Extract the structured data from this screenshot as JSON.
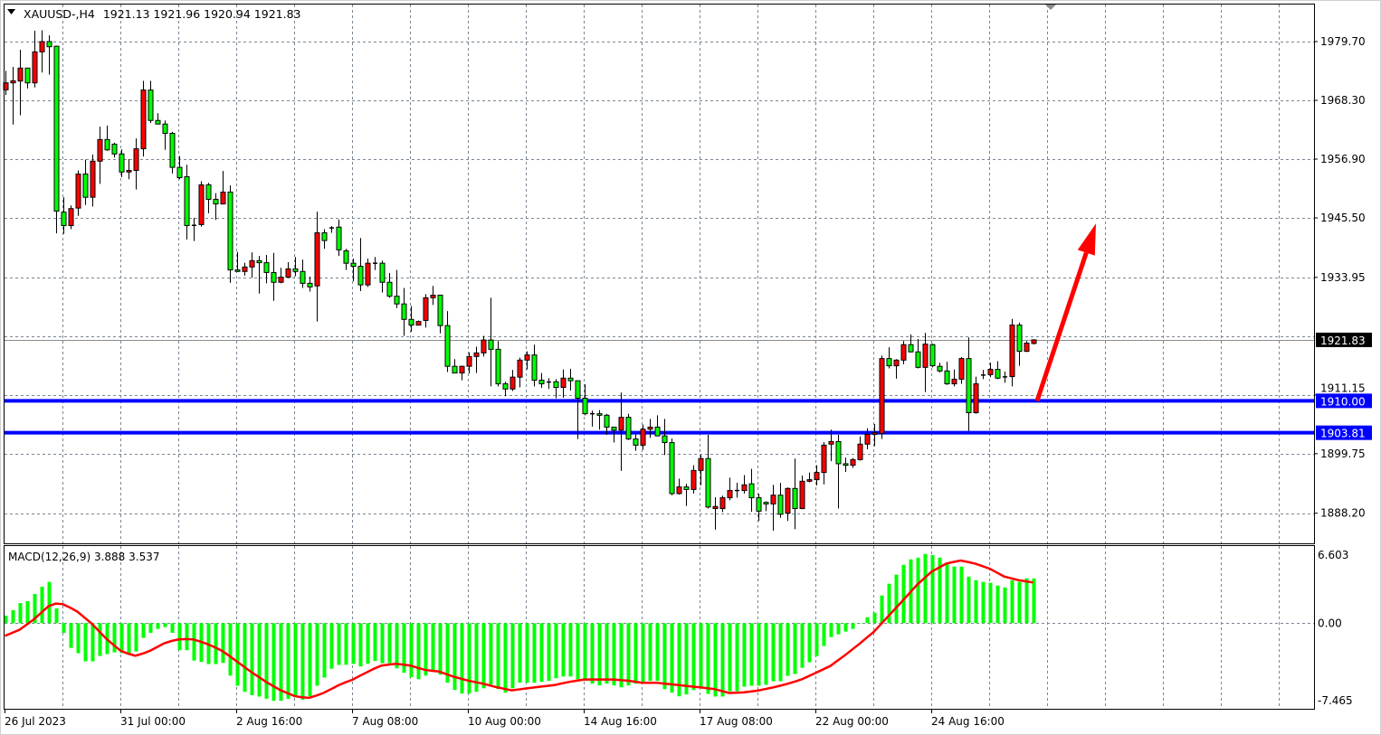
{
  "header": {
    "symbol": "XAUUSD-,H4",
    "ohlc": "1921.13 1921.96 1920.94 1921.83",
    "menu_icon": "triangle-down-icon"
  },
  "colors": {
    "bull": "#ff0000",
    "bear": "#00ff00",
    "outline": "#000000",
    "grid": "#7a8694",
    "level_line": "#0000ff",
    "macd_histogram": "#00ff00",
    "macd_signal": "#ff0000",
    "arrow": "#ff0000",
    "price_line": "#8c8c8c"
  },
  "chart_data": [
    {
      "type": "candlestick",
      "symbol": "XAUUSD-",
      "timeframe": "H4",
      "y_range": [
        1882.35,
        1987.07
      ],
      "grid": true,
      "price_ticks": [
        {
          "value": 1979.7,
          "label": "1979.70"
        },
        {
          "value": 1968.3,
          "label": "1968.30"
        },
        {
          "value": 1956.9,
          "label": "1956.90"
        },
        {
          "value": 1945.5,
          "label": "1945.50"
        },
        {
          "value": 1933.95,
          "label": "1933.95"
        },
        {
          "value": 1922.55,
          "label": ""
        },
        {
          "value": 1911.15,
          "label": "1911.15"
        },
        {
          "value": 1899.75,
          "label": "1899.75"
        },
        {
          "value": 1888.2,
          "label": "1888.20"
        }
      ],
      "current_price": {
        "value": 1921.83,
        "label": "1921.83"
      },
      "levels": [
        {
          "value": 1910.0,
          "label": "1910.00"
        },
        {
          "value": 1903.81,
          "label": "1903.81"
        }
      ],
      "arrow": {
        "from_price": 1910.0,
        "to_price": 1944.4,
        "direction": "up"
      },
      "time_labels": [
        "26 Jul 2023",
        "31 Jul 00:00",
        "2 Aug 16:00",
        "7 Aug 08:00",
        "10 Aug 00:00",
        "14 Aug 16:00",
        "17 Aug 08:00",
        "22 Aug 00:00",
        "24 Aug 16:00"
      ],
      "ohlc_order": [
        "open",
        "high",
        "low",
        "close"
      ],
      "candles": [
        [
          1970.35,
          1974.03,
          1969.35,
          1971.69
        ],
        [
          1971.69,
          1974.79,
          1963.6,
          1972.1
        ],
        [
          1972.04,
          1978.1,
          1965.4,
          1974.56
        ],
        [
          1974.56,
          1974.56,
          1970.6,
          1971.69
        ],
        [
          1971.69,
          1981.8,
          1970.8,
          1977.71
        ],
        [
          1977.71,
          1981.9,
          1973.7,
          1979.7
        ],
        [
          1979.7,
          1980.9,
          1973.3,
          1978.7
        ],
        [
          1978.8,
          1978.9,
          1942.5,
          1946.8
        ],
        [
          1946.6,
          1949.5,
          1942.4,
          1944.0
        ],
        [
          1944.0,
          1947.9,
          1943.3,
          1947.3
        ],
        [
          1947.4,
          1954.7,
          1945.9,
          1954.0
        ],
        [
          1954.0,
          1956.8,
          1948.0,
          1949.5
        ],
        [
          1949.5,
          1957.8,
          1947.7,
          1956.5
        ],
        [
          1956.5,
          1963.2,
          1952.1,
          1960.7
        ],
        [
          1960.7,
          1963.4,
          1958.5,
          1958.7
        ],
        [
          1959.8,
          1960.1,
          1957.2,
          1957.9
        ],
        [
          1957.9,
          1958.8,
          1953.4,
          1954.4
        ],
        [
          1954.4,
          1956.9,
          1953.0,
          1954.7
        ],
        [
          1954.7,
          1960.9,
          1951.0,
          1958.9
        ],
        [
          1958.9,
          1972.1,
          1957.4,
          1970.3
        ],
        [
          1970.3,
          1972.1,
          1963.9,
          1964.4
        ],
        [
          1964.4,
          1965.8,
          1963.7,
          1963.7
        ],
        [
          1963.7,
          1964.4,
          1958.7,
          1961.9
        ],
        [
          1961.9,
          1962.2,
          1954.1,
          1955.3
        ],
        [
          1955.3,
          1957.5,
          1953.0,
          1953.3
        ],
        [
          1953.5,
          1955.8,
          1941.3,
          1944.0
        ],
        [
          1944.1,
          1945.5,
          1941.0,
          1944.0
        ],
        [
          1944.2,
          1952.6,
          1943.8,
          1951.9
        ],
        [
          1951.9,
          1952.3,
          1946.4,
          1949.1
        ],
        [
          1949.1,
          1950.3,
          1945.1,
          1948.2
        ],
        [
          1948.2,
          1954.6,
          1948.1,
          1950.5
        ],
        [
          1950.5,
          1951.8,
          1932.9,
          1935.4
        ],
        [
          1935.4,
          1938.9,
          1935.0,
          1935.1
        ],
        [
          1935.1,
          1936.8,
          1934.3,
          1935.97
        ],
        [
          1935.97,
          1938.8,
          1933.9,
          1937.2
        ],
        [
          1937.2,
          1938.1,
          1930.8,
          1936.8
        ],
        [
          1936.8,
          1938.3,
          1932.8,
          1934.9
        ],
        [
          1934.9,
          1938.7,
          1929.4,
          1933.0
        ],
        [
          1933.0,
          1935.8,
          1932.8,
          1934.0
        ],
        [
          1934.0,
          1936.9,
          1933.9,
          1935.6
        ],
        [
          1935.6,
          1937.9,
          1934.2,
          1935.1
        ],
        [
          1935.1,
          1937.4,
          1931.9,
          1932.8
        ],
        [
          1932.8,
          1934.1,
          1931.2,
          1932.1
        ],
        [
          1932.3,
          1946.7,
          1925.4,
          1942.6
        ],
        [
          1942.6,
          1943.3,
          1939.5,
          1941.1
        ],
        [
          1943.6,
          1943.9,
          1942.6,
          1943.5
        ],
        [
          1943.7,
          1945.2,
          1938.1,
          1939.3
        ],
        [
          1939.1,
          1939.5,
          1935.4,
          1936.7
        ],
        [
          1936.7,
          1937.6,
          1933.2,
          1936.1
        ],
        [
          1936.1,
          1941.6,
          1931.3,
          1932.5
        ],
        [
          1932.5,
          1937.6,
          1932.1,
          1936.7
        ],
        [
          1936.7,
          1937.9,
          1935.4,
          1936.7
        ],
        [
          1936.7,
          1937.2,
          1931.0,
          1933.0
        ],
        [
          1933.0,
          1934.8,
          1930.0,
          1930.3
        ],
        [
          1930.3,
          1935.4,
          1928.0,
          1928.8
        ],
        [
          1928.8,
          1931.9,
          1922.6,
          1925.8
        ],
        [
          1925.8,
          1928.4,
          1923.4,
          1924.7
        ],
        [
          1924.7,
          1925.6,
          1924.6,
          1925.4
        ],
        [
          1925.6,
          1930.7,
          1924.2,
          1930.0
        ],
        [
          1930.0,
          1932.3,
          1928.6,
          1930.5
        ],
        [
          1930.5,
          1930.5,
          1923.1,
          1924.6
        ],
        [
          1924.6,
          1927.4,
          1915.6,
          1916.7
        ],
        [
          1916.7,
          1918.1,
          1915.4,
          1915.4
        ],
        [
          1915.4,
          1916.8,
          1914.0,
          1916.7
        ],
        [
          1916.7,
          1919.4,
          1915.3,
          1918.6
        ],
        [
          1918.6,
          1920.5,
          1915.4,
          1919.3
        ],
        [
          1919.3,
          1922.6,
          1918.6,
          1921.8
        ],
        [
          1921.8,
          1930.0,
          1912.8,
          1920.0
        ],
        [
          1920.0,
          1921.6,
          1912.8,
          1913.3
        ],
        [
          1913.3,
          1913.7,
          1910.9,
          1912.3
        ],
        [
          1912.3,
          1916.0,
          1911.9,
          1914.6
        ],
        [
          1914.6,
          1918.4,
          1912.6,
          1917.9
        ],
        [
          1917.9,
          1919.6,
          1916.1,
          1918.9
        ],
        [
          1918.9,
          1920.9,
          1912.8,
          1914.0
        ],
        [
          1914.0,
          1915.4,
          1912.5,
          1913.3
        ],
        [
          1913.7,
          1914.4,
          1912.3,
          1913.6
        ],
        [
          1913.7,
          1914.2,
          1910.5,
          1912.6
        ],
        [
          1912.6,
          1916.1,
          1910.6,
          1914.4
        ],
        [
          1914.4,
          1916.2,
          1912.0,
          1913.9
        ],
        [
          1913.9,
          1913.9,
          1902.6,
          1910.5
        ],
        [
          1910.5,
          1913.2,
          1907.2,
          1907.5
        ],
        [
          1907.5,
          1908.1,
          1905.0,
          1907.5
        ],
        [
          1907.5,
          1908.2,
          1904.4,
          1907.2
        ],
        [
          1907.2,
          1907.5,
          1903.4,
          1904.9
        ],
        [
          1904.9,
          1904.9,
          1901.9,
          1904.3
        ],
        [
          1904.3,
          1911.6,
          1896.4,
          1906.8
        ],
        [
          1906.8,
          1907.5,
          1902.4,
          1902.6
        ],
        [
          1902.6,
          1903.5,
          1900.3,
          1901.4
        ],
        [
          1901.4,
          1905.4,
          1900.5,
          1904.5
        ],
        [
          1904.5,
          1906.5,
          1902.8,
          1904.9
        ],
        [
          1904.9,
          1907.2,
          1903.2,
          1903.2
        ],
        [
          1903.2,
          1906.5,
          1899.5,
          1901.9
        ],
        [
          1901.9,
          1902.7,
          1891.7,
          1892.0
        ],
        [
          1892.0,
          1894.9,
          1891.8,
          1893.3
        ],
        [
          1893.3,
          1893.9,
          1889.6,
          1892.8
        ],
        [
          1892.8,
          1897.5,
          1892.0,
          1896.5
        ],
        [
          1896.5,
          1899.5,
          1893.6,
          1898.8
        ],
        [
          1898.8,
          1903.4,
          1889.1,
          1889.4
        ],
        [
          1889.1,
          1891.3,
          1885.0,
          1889.5
        ],
        [
          1889.1,
          1891.6,
          1888.4,
          1891.2
        ],
        [
          1891.2,
          1895.1,
          1890.7,
          1892.6
        ],
        [
          1892.6,
          1894.1,
          1891.2,
          1892.6
        ],
        [
          1892.6,
          1895.6,
          1892.0,
          1893.7
        ],
        [
          1893.9,
          1896.8,
          1888.5,
          1891.2
        ],
        [
          1891.2,
          1892.0,
          1886.7,
          1888.6
        ],
        [
          1890.3,
          1890.5,
          1888.6,
          1890.0
        ],
        [
          1890.0,
          1893.7,
          1884.8,
          1891.7
        ],
        [
          1891.7,
          1894.1,
          1887.3,
          1888.0
        ],
        [
          1888.2,
          1893.2,
          1886.7,
          1893.0
        ],
        [
          1893.0,
          1898.8,
          1885.1,
          1889.1
        ],
        [
          1889.1,
          1895.5,
          1889.0,
          1894.4
        ],
        [
          1894.4,
          1896.1,
          1894.2,
          1894.7
        ],
        [
          1894.7,
          1897.5,
          1893.6,
          1896.1
        ],
        [
          1896.1,
          1902.0,
          1893.8,
          1901.4
        ],
        [
          1901.6,
          1904.4,
          1898.3,
          1902.1
        ],
        [
          1902.1,
          1903.4,
          1889.1,
          1897.8
        ],
        [
          1897.8,
          1899.0,
          1896.2,
          1897.5
        ],
        [
          1897.5,
          1898.9,
          1897.0,
          1898.6
        ],
        [
          1898.6,
          1903.1,
          1898.4,
          1901.6
        ],
        [
          1901.6,
          1904.7,
          1900.6,
          1903.5
        ],
        [
          1903.5,
          1905.5,
          1901.2,
          1903.8
        ],
        [
          1903.7,
          1918.8,
          1902.6,
          1918.2
        ],
        [
          1918.2,
          1920.4,
          1916.3,
          1916.8
        ],
        [
          1916.8,
          1918.1,
          1914.3,
          1917.9
        ],
        [
          1917.9,
          1921.6,
          1917.1,
          1920.9
        ],
        [
          1920.9,
          1922.9,
          1919.4,
          1919.5
        ],
        [
          1919.5,
          1922.0,
          1916.3,
          1916.5
        ],
        [
          1916.5,
          1923.2,
          1911.7,
          1921.0
        ],
        [
          1920.9,
          1921.1,
          1916.5,
          1916.8
        ],
        [
          1916.7,
          1917.4,
          1915.5,
          1915.8
        ],
        [
          1915.8,
          1917.6,
          1913.1,
          1913.3
        ],
        [
          1913.3,
          1916.1,
          1912.8,
          1914.2
        ],
        [
          1914.2,
          1918.5,
          1913.3,
          1918.2
        ],
        [
          1918.2,
          1922.3,
          1904.2,
          1907.7
        ],
        [
          1907.7,
          1914.7,
          1907.5,
          1913.3
        ],
        [
          1915.0,
          1916.0,
          1914.2,
          1915.0
        ],
        [
          1915.1,
          1917.4,
          1914.6,
          1916.1
        ],
        [
          1916.1,
          1917.7,
          1914.2,
          1914.4
        ],
        [
          1914.7,
          1915.7,
          1913.5,
          1914.6
        ],
        [
          1914.7,
          1925.9,
          1912.8,
          1924.7
        ],
        [
          1924.7,
          1925.2,
          1916.8,
          1919.6
        ],
        [
          1919.6,
          1921.6,
          1919.5,
          1921.2
        ],
        [
          1921.13,
          1921.96,
          1920.94,
          1921.83
        ]
      ]
    },
    {
      "type": "bar",
      "title": "MACD(12,26,9) 3.888 3.537",
      "y_range": [
        -7.465,
        6.603
      ],
      "y_ticks": [
        {
          "value": 6.603,
          "label": "6.603"
        },
        {
          "value": 0,
          "label": "0.00"
        },
        {
          "value": -7.465,
          "label": "-7.465"
        }
      ],
      "grid": true,
      "histogram": [
        0.65,
        1.13,
        1.75,
        1.91,
        2.54,
        3.17,
        3.59,
        1.28,
        -0.84,
        -2.15,
        -2.61,
        -3.32,
        -3.32,
        -2.86,
        -2.69,
        -2.54,
        -2.6,
        -2.67,
        -2.46,
        -1.28,
        -0.84,
        -0.5,
        -0.34,
        -0.84,
        -2.35,
        -2.35,
        -3.25,
        -3.37,
        -3.56,
        -3.56,
        -3.45,
        -4.56,
        -5.44,
        -5.97,
        -6.26,
        -6.38,
        -6.57,
        -6.75,
        -6.75,
        -6.57,
        -6.44,
        -6.65,
        -6.34,
        -5.44,
        -4.73,
        -3.96,
        -3.63,
        -3.62,
        -3.54,
        -3.77,
        -3.54,
        -3.29,
        -3.48,
        -3.48,
        -3.93,
        -4.31,
        -4.71,
        -4.87,
        -4.56,
        -4.16,
        -4.48,
        -5.18,
        -5.81,
        -6.12,
        -6.12,
        -5.97,
        -5.66,
        -5.33,
        -5.73,
        -6.04,
        -5.66,
        -5.18,
        -5.18,
        -5.18,
        -5.1,
        -5.02,
        -4.79,
        -4.64,
        -4.64,
        -4.87,
        -5.02,
        -5.26,
        -5.41,
        -5.26,
        -5.41,
        -5.58,
        -5.41,
        -5.26,
        -5.1,
        -5.02,
        -5.02,
        -5.73,
        -6.04,
        -6.36,
        -6.2,
        -5.81,
        -5.68,
        -6.15,
        -6.38,
        -6.38,
        -5.92,
        -5.92,
        -5.52,
        -5.44,
        -5.44,
        -5.36,
        -5.05,
        -5.05,
        -4.58,
        -4.42,
        -3.88,
        -3.4,
        -2.86,
        -1.99,
        -1.21,
        -0.97,
        -0.73,
        -0.5,
        -0.03,
        0.52,
        0.91,
        2.41,
        3.43,
        4.22,
        5.07,
        5.55,
        5.7,
        6.02,
        5.92,
        5.7,
        5.16,
        4.92,
        4.92,
        4.05,
        3.74,
        3.59,
        3.51,
        3.27,
        3.11,
        3.74,
        3.59,
        3.9,
        3.888
      ],
      "signal": [
        -1.1,
        -0.84,
        -0.58,
        -0.12,
        0.34,
        0.9,
        1.47,
        1.7,
        1.65,
        1.35,
        1.0,
        0.48,
        -0.05,
        -0.7,
        -1.36,
        -1.9,
        -2.41,
        -2.65,
        -2.83,
        -2.65,
        -2.41,
        -2.08,
        -1.75,
        -1.55,
        -1.41,
        -1.38,
        -1.41,
        -1.6,
        -1.83,
        -2.1,
        -2.41,
        -2.85,
        -3.32,
        -3.78,
        -4.24,
        -4.66,
        -5.08,
        -5.45,
        -5.81,
        -6.08,
        -6.34,
        -6.44,
        -6.49,
        -6.3,
        -6.07,
        -5.75,
        -5.42,
        -5.15,
        -4.92,
        -4.58,
        -4.27,
        -3.95,
        -3.69,
        -3.6,
        -3.53,
        -3.6,
        -3.69,
        -3.88,
        -4.06,
        -4.14,
        -4.21,
        -4.44,
        -4.66,
        -4.83,
        -5.0,
        -5.13,
        -5.26,
        -5.42,
        -5.58,
        -5.71,
        -5.84,
        -5.76,
        -5.68,
        -5.6,
        -5.52,
        -5.45,
        -5.37,
        -5.23,
        -5.1,
        -5.0,
        -4.9,
        -4.9,
        -4.9,
        -4.9,
        -4.9,
        -4.95,
        -5.0,
        -5.09,
        -5.18,
        -5.18,
        -5.18,
        -5.25,
        -5.31,
        -5.38,
        -5.45,
        -5.52,
        -5.58,
        -5.66,
        -5.73,
        -5.9,
        -6.07,
        -6.05,
        -6.02,
        -5.94,
        -5.86,
        -5.73,
        -5.6,
        -5.45,
        -5.29,
        -5.1,
        -4.9,
        -4.61,
        -4.32,
        -4.02,
        -3.72,
        -3.26,
        -2.8,
        -2.3,
        -1.81,
        -1.28,
        -0.76,
        -0.08,
        0.6,
        1.28,
        1.96,
        2.65,
        3.35,
        3.92,
        4.48,
        4.83,
        5.18,
        5.32,
        5.45,
        5.32,
        5.18,
        4.96,
        4.74,
        4.4,
        4.06,
        3.9,
        3.74,
        3.64,
        3.537
      ]
    }
  ]
}
